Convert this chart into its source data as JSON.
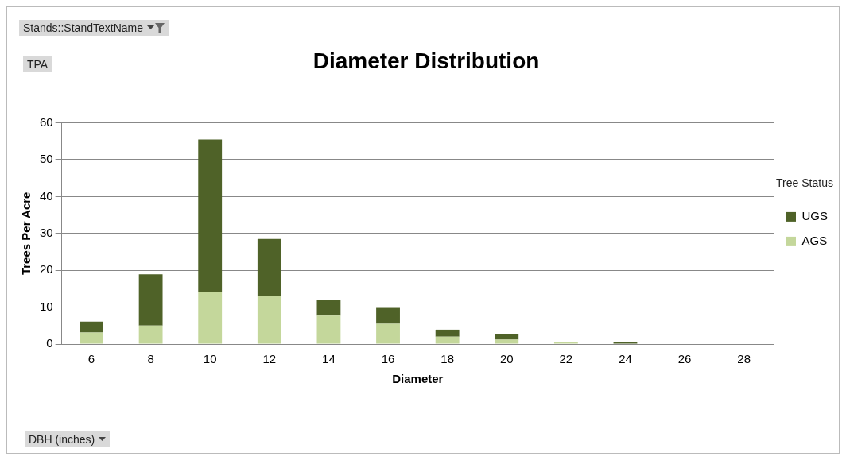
{
  "chart_data": {
    "type": "bar",
    "title": "Diameter Distribution",
    "xlabel": "Diameter",
    "ylabel": "Trees Per Acre",
    "legend_title": "Tree Status",
    "annotations": [
      "Stands::StandTextName",
      "TPA",
      "DBH (inches)"
    ],
    "categories": [
      "6",
      "8",
      "10",
      "12",
      "14",
      "16",
      "18",
      "20",
      "22",
      "24",
      "26",
      "28"
    ],
    "series": [
      {
        "name": "AGS",
        "color": "#c4d79b",
        "values": [
          3.1,
          5.0,
          14.2,
          13.1,
          7.7,
          5.5,
          2.0,
          1.2,
          0.5,
          0,
          0,
          0
        ]
      },
      {
        "name": "UGS",
        "color": "#4f6228",
        "values": [
          3.0,
          13.9,
          41.3,
          15.4,
          4.2,
          4.3,
          1.9,
          1.6,
          0,
          0.5,
          0,
          0
        ]
      }
    ],
    "stacked": true,
    "ylim": [
      0,
      60
    ],
    "yticks": [
      0,
      10,
      20,
      30,
      40,
      50,
      60
    ],
    "grid": "y",
    "legend": "right"
  }
}
